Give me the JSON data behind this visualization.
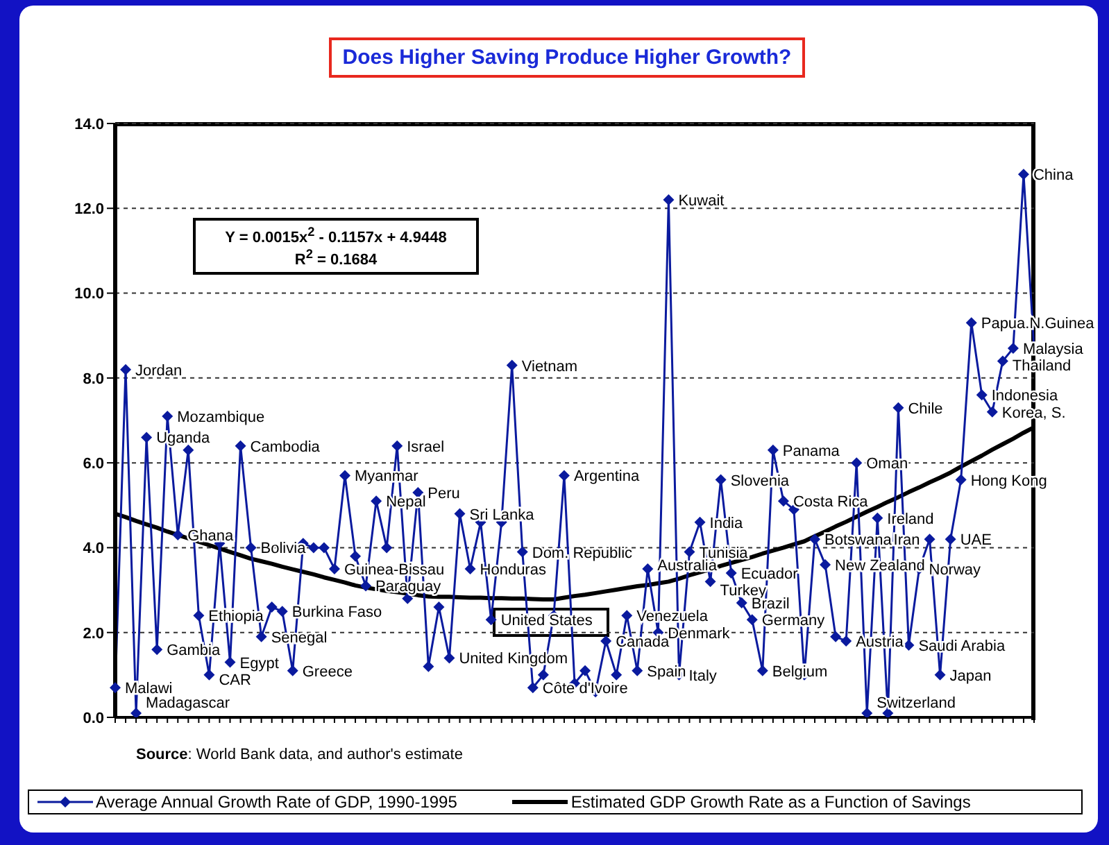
{
  "chart_data": {
    "type": "line",
    "title": "Does Higher Saving Produce Higher Growth?",
    "categories": [
      null,
      null,
      null,
      null,
      null,
      null,
      null,
      null,
      null,
      null,
      null,
      null,
      null,
      null,
      null,
      null,
      null,
      null,
      null,
      null,
      null,
      null,
      null,
      null,
      null,
      null,
      null,
      null,
      null,
      null,
      null,
      null,
      null,
      null,
      null,
      null,
      null,
      null,
      null,
      null,
      null,
      null,
      null,
      null,
      null,
      null,
      null,
      null,
      null,
      null,
      null,
      null,
      null,
      null,
      null,
      null,
      null,
      null,
      null,
      null,
      null,
      null,
      null,
      null,
      null,
      null,
      null,
      null,
      null,
      null,
      null,
      null,
      null,
      null,
      null,
      null,
      null,
      null,
      null,
      null,
      null,
      null,
      null,
      null,
      null,
      null,
      null,
      null,
      null
    ],
    "series": [
      {
        "name": "Average Annual Growth Rate of GDP, 1990-1995",
        "color": "#0a1a9e",
        "marker": "diamond",
        "values": [
          0.7,
          8.2,
          0.1,
          6.6,
          1.6,
          7.1,
          4.3,
          6.3,
          2.4,
          1.0,
          4.1,
          1.3,
          6.4,
          4.0,
          1.9,
          2.6,
          2.5,
          1.1,
          4.1,
          4.0,
          4.0,
          3.5,
          5.7,
          3.8,
          3.1,
          5.1,
          4.0,
          6.4,
          2.8,
          5.3,
          1.2,
          2.6,
          1.4,
          4.8,
          3.5,
          4.6,
          2.3,
          4.6,
          8.3,
          3.9,
          0.7,
          1.0,
          2.4,
          5.7,
          0.8,
          1.1,
          0.6,
          1.8,
          1.0,
          2.4,
          1.1,
          3.5,
          2.0,
          12.2,
          1.0,
          3.9,
          4.6,
          3.2,
          5.6,
          3.4,
          2.7,
          2.3,
          1.1,
          6.3,
          5.1,
          4.9,
          1.0,
          4.2,
          3.6,
          1.9,
          1.8,
          6.0,
          0.1,
          4.7,
          0.1,
          7.3,
          1.7,
          3.5,
          4.2,
          1.0,
          4.2,
          5.6,
          9.3,
          7.6,
          7.2,
          8.4,
          8.7,
          12.8,
          8.7
        ],
        "value_labels": [
          "Malawi",
          "Jordan",
          "Madagascar",
          "Uganda",
          "Gambia",
          "Mozambique",
          "Ghana",
          null,
          "Ethiopia",
          "CAR",
          null,
          "Egypt",
          "Cambodia",
          "Bolivia",
          "Senegal",
          null,
          "Burkina Faso",
          "Greece",
          null,
          null,
          null,
          "Guinea-Bissau",
          "Myanmar",
          null,
          "Paraguay",
          "Nepal",
          null,
          "Israel",
          null,
          "Peru",
          null,
          null,
          "United Kingdom",
          "Sri Lanka",
          "Honduras",
          null,
          "United States",
          null,
          "Vietnam",
          "Dom. Republic",
          "Côte d'Ivoire",
          null,
          null,
          "Argentina",
          null,
          null,
          null,
          "Canada",
          null,
          "Venezuela",
          "Spain",
          "Australia",
          "Denmark",
          "Kuwait",
          "Italy",
          "Tunisia",
          "India",
          "Turkey",
          "Slovenia",
          "Ecuador",
          "Brazil",
          "Germany",
          "Belgium",
          "Panama",
          "Costa Rica",
          null,
          null,
          "Botswana",
          "New Zealand",
          null,
          "Austria",
          "Oman",
          "Switzerland",
          "Ireland",
          null,
          "Chile",
          "Saudi Arabia",
          "Norway",
          "Iran",
          "Japan",
          "UAE",
          "Hong Kong",
          "Papua.N.Guinea",
          "Indonesia",
          "Korea, S.",
          "Thailand",
          "Malaysia",
          "China",
          null
        ]
      },
      {
        "name": "Estimated GDP Growth Rate as a Function of Savings",
        "color": "#000000",
        "marker": "none",
        "values": [
          4.8,
          4.72,
          4.63,
          4.55,
          4.47,
          4.38,
          4.3,
          4.22,
          4.14,
          4.06,
          3.98,
          3.9,
          3.82,
          3.74,
          3.68,
          3.62,
          3.55,
          3.49,
          3.43,
          3.37,
          3.3,
          3.24,
          3.18,
          3.11,
          3.06,
          3.02,
          2.98,
          2.95,
          2.92,
          2.88,
          2.85,
          2.84,
          2.84,
          2.83,
          2.82,
          2.82,
          2.81,
          2.81,
          2.8,
          2.8,
          2.79,
          2.78,
          2.78,
          2.82,
          2.86,
          2.89,
          2.93,
          2.97,
          3.01,
          3.05,
          3.09,
          3.12,
          3.16,
          3.2,
          3.27,
          3.35,
          3.42,
          3.49,
          3.57,
          3.64,
          3.71,
          3.78,
          3.86,
          3.93,
          4.0,
          4.08,
          4.15,
          4.27,
          4.38,
          4.5,
          4.61,
          4.73,
          4.85,
          4.96,
          5.08,
          5.19,
          5.31,
          5.42,
          5.54,
          5.65,
          5.77,
          5.91,
          6.04,
          6.17,
          6.31,
          6.44,
          6.57,
          6.71,
          6.84
        ]
      }
    ],
    "ylim": [
      0,
      14
    ],
    "yticks": [
      {
        "value": 0,
        "label": "0.0"
      },
      {
        "value": 2,
        "label": "2.0"
      },
      {
        "value": 4,
        "label": "4.0"
      },
      {
        "value": 6,
        "label": "6.0"
      },
      {
        "value": 8,
        "label": "8.0"
      },
      {
        "value": 10,
        "label": "10.0"
      },
      {
        "value": 12,
        "label": "12.0"
      },
      {
        "value": 14,
        "label": "14.0"
      }
    ],
    "grid": "y",
    "legend": "bottom",
    "tick_labels": "y",
    "annotations": [
      "Y = 0.0015x$^{2}$ - 0.1157x + 4.9448",
      "R$^{2}$ = 0.1684",
      "Source: World Bank data, and author's estimate"
    ]
  }
}
